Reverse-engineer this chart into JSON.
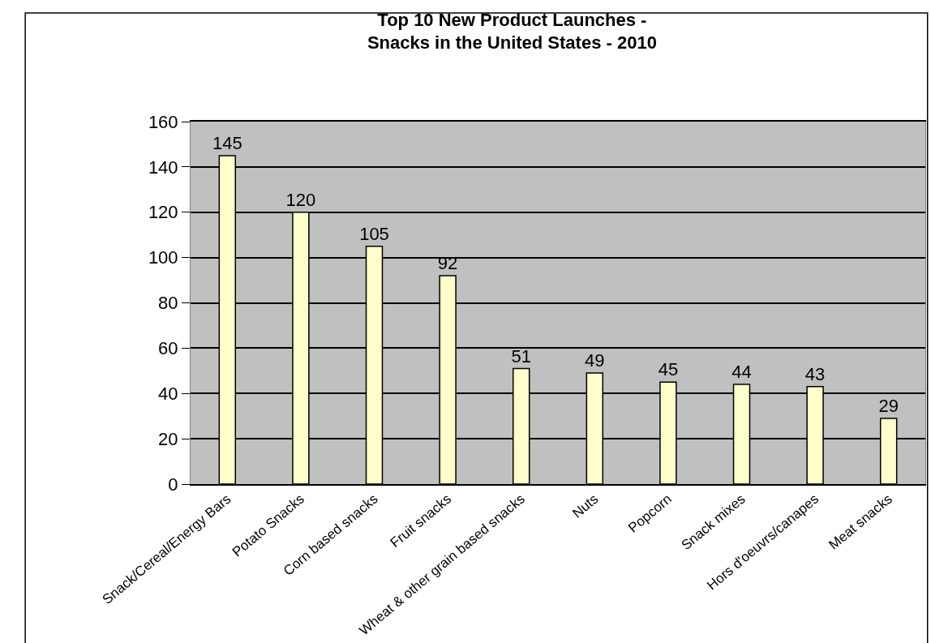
{
  "chart_data": {
    "type": "bar",
    "title": "Top 10 New Product Launches -\nSnacks in the United States - 2010",
    "categories": [
      "Snack/Cereal/Energy Bars",
      "Potato Snacks",
      "Corn based snacks",
      "Fruit snacks",
      "Wheat & other grain based snacks",
      "Nuts",
      "Popcorn",
      "Snack mixes",
      "Hors d'oeuvrs/canapes",
      "Meat snacks"
    ],
    "values": [
      145,
      120,
      105,
      92,
      51,
      49,
      45,
      44,
      43,
      29
    ],
    "color": "#ffffcc",
    "ylim": [
      0,
      160
    ],
    "yticks": [
      0,
      20,
      40,
      60,
      80,
      100,
      120,
      140,
      160
    ],
    "grid": "y",
    "data_labels": true
  }
}
